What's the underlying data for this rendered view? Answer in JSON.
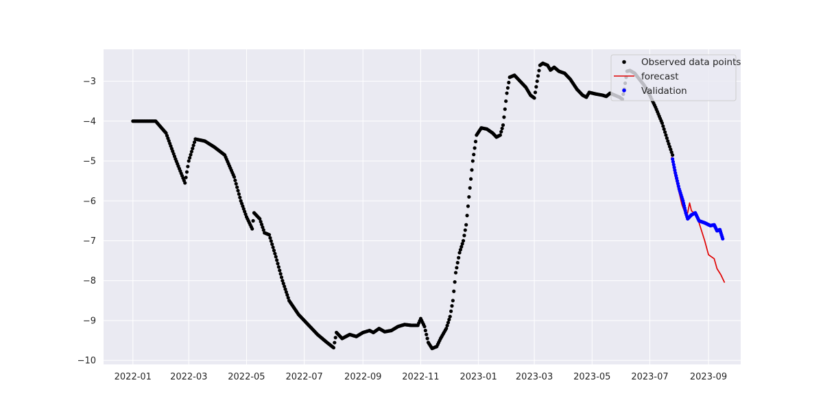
{
  "chart_data": {
    "type": "scatter",
    "title": "",
    "xlabel": "",
    "ylabel": "",
    "x_axis_type": "date",
    "xlim": [
      "2021-12-01",
      "2023-10-05"
    ],
    "ylim": [
      -10.1,
      -2.2
    ],
    "x_ticks": [
      "2022-01",
      "2022-03",
      "2022-05",
      "2022-07",
      "2022-09",
      "2022-11",
      "2023-01",
      "2023-03",
      "2023-05",
      "2023-07",
      "2023-09"
    ],
    "y_ticks": [
      -3,
      -4,
      -5,
      -6,
      -7,
      -8,
      -9,
      -10
    ],
    "grid": true,
    "background": "#eaeaf2",
    "legend_position": "top-right",
    "series": [
      {
        "name": "Observed data points",
        "style": "points",
        "color": "#000000",
        "points": [
          [
            "2022-01-01",
            -4.0
          ],
          [
            "2022-01-25",
            -4.0
          ],
          [
            "2022-02-05",
            -4.3
          ],
          [
            "2022-02-15",
            -4.95
          ],
          [
            "2022-02-25",
            -5.55
          ],
          [
            "2022-03-01",
            -5.0
          ],
          [
            "2022-03-08",
            -4.45
          ],
          [
            "2022-03-18",
            -4.5
          ],
          [
            "2022-03-28",
            -4.65
          ],
          [
            "2022-04-08",
            -4.85
          ],
          [
            "2022-04-18",
            -5.4
          ],
          [
            "2022-04-25",
            -6.0
          ],
          [
            "2022-05-01",
            -6.4
          ],
          [
            "2022-05-07",
            -6.7
          ],
          [
            "2022-05-09",
            -6.3
          ],
          [
            "2022-05-15",
            -6.45
          ],
          [
            "2022-05-20",
            -6.8
          ],
          [
            "2022-05-25",
            -6.85
          ],
          [
            "2022-06-01",
            -7.4
          ],
          [
            "2022-06-08",
            -8.0
          ],
          [
            "2022-06-15",
            -8.5
          ],
          [
            "2022-06-25",
            -8.85
          ],
          [
            "2022-07-05",
            -9.1
          ],
          [
            "2022-07-15",
            -9.35
          ],
          [
            "2022-07-25",
            -9.55
          ],
          [
            "2022-08-01",
            -9.68
          ],
          [
            "2022-08-04",
            -9.3
          ],
          [
            "2022-08-10",
            -9.45
          ],
          [
            "2022-08-18",
            -9.35
          ],
          [
            "2022-08-25",
            -9.4
          ],
          [
            "2022-09-01",
            -9.3
          ],
          [
            "2022-09-08",
            -9.25
          ],
          [
            "2022-09-12",
            -9.3
          ],
          [
            "2022-09-18",
            -9.2
          ],
          [
            "2022-09-24",
            -9.28
          ],
          [
            "2022-10-01",
            -9.25
          ],
          [
            "2022-10-08",
            -9.15
          ],
          [
            "2022-10-15",
            -9.1
          ],
          [
            "2022-10-22",
            -9.12
          ],
          [
            "2022-10-29",
            -9.12
          ],
          [
            "2022-11-01",
            -8.95
          ],
          [
            "2022-11-05",
            -9.15
          ],
          [
            "2022-11-09",
            -9.55
          ],
          [
            "2022-11-13",
            -9.7
          ],
          [
            "2022-11-18",
            -9.65
          ],
          [
            "2022-11-22",
            -9.45
          ],
          [
            "2022-11-28",
            -9.2
          ],
          [
            "2022-12-02",
            -8.9
          ],
          [
            "2022-12-05",
            -8.5
          ],
          [
            "2022-12-08",
            -7.8
          ],
          [
            "2022-12-12",
            -7.3
          ],
          [
            "2022-12-16",
            -7.0
          ],
          [
            "2022-12-19",
            -6.6
          ],
          [
            "2022-12-22",
            -5.9
          ],
          [
            "2022-12-26",
            -5.0
          ],
          [
            "2022-12-30",
            -4.35
          ],
          [
            "2023-01-04",
            -4.17
          ],
          [
            "2023-01-10",
            -4.2
          ],
          [
            "2023-01-16",
            -4.3
          ],
          [
            "2023-01-20",
            -4.4
          ],
          [
            "2023-01-24",
            -4.35
          ],
          [
            "2023-01-27",
            -4.1
          ],
          [
            "2023-01-31",
            -3.3
          ],
          [
            "2023-02-03",
            -2.9
          ],
          [
            "2023-02-08",
            -2.85
          ],
          [
            "2023-02-14",
            -3.0
          ],
          [
            "2023-02-20",
            -3.15
          ],
          [
            "2023-02-25",
            -3.35
          ],
          [
            "2023-03-01",
            -3.42
          ],
          [
            "2023-03-04",
            -3.0
          ],
          [
            "2023-03-07",
            -2.6
          ],
          [
            "2023-03-10",
            -2.55
          ],
          [
            "2023-03-15",
            -2.6
          ],
          [
            "2023-03-18",
            -2.72
          ],
          [
            "2023-03-22",
            -2.65
          ],
          [
            "2023-03-27",
            -2.75
          ],
          [
            "2023-04-02",
            -2.8
          ],
          [
            "2023-04-08",
            -2.95
          ],
          [
            "2023-04-15",
            -3.2
          ],
          [
            "2023-04-21",
            -3.35
          ],
          [
            "2023-04-25",
            -3.4
          ],
          [
            "2023-04-28",
            -3.28
          ],
          [
            "2023-05-05",
            -3.32
          ],
          [
            "2023-05-12",
            -3.35
          ],
          [
            "2023-05-16",
            -3.38
          ],
          [
            "2023-05-20",
            -3.3
          ],
          [
            "2023-05-25",
            -3.35
          ],
          [
            "2023-05-30",
            -3.4
          ],
          [
            "2023-06-02",
            -3.45
          ],
          [
            "2023-06-04",
            -3.2
          ],
          [
            "2023-06-07",
            -2.75
          ],
          [
            "2023-06-10",
            -2.73
          ],
          [
            "2023-06-15",
            -2.8
          ],
          [
            "2023-06-20",
            -2.95
          ],
          [
            "2023-06-25",
            -3.1
          ],
          [
            "2023-07-01",
            -3.35
          ],
          [
            "2023-07-07",
            -3.65
          ],
          [
            "2023-07-14",
            -4.05
          ],
          [
            "2023-07-20",
            -4.5
          ],
          [
            "2023-07-25",
            -4.85
          ]
        ]
      },
      {
        "name": "forecast",
        "style": "line",
        "color": "#e00000",
        "points": [
          [
            "2023-07-24",
            -4.9
          ],
          [
            "2023-07-27",
            -5.3
          ],
          [
            "2023-07-31",
            -5.7
          ],
          [
            "2023-08-04",
            -6.1
          ],
          [
            "2023-08-08",
            -6.35
          ],
          [
            "2023-08-10",
            -6.3
          ],
          [
            "2023-08-12",
            -6.05
          ],
          [
            "2023-08-14",
            -6.25
          ],
          [
            "2023-08-17",
            -6.3
          ],
          [
            "2023-08-20",
            -6.4
          ],
          [
            "2023-08-24",
            -6.7
          ],
          [
            "2023-08-28",
            -7.0
          ],
          [
            "2023-09-01",
            -7.35
          ],
          [
            "2023-09-04",
            -7.4
          ],
          [
            "2023-09-07",
            -7.45
          ],
          [
            "2023-09-10",
            -7.7
          ],
          [
            "2023-09-14",
            -7.85
          ],
          [
            "2023-09-18",
            -8.05
          ]
        ]
      },
      {
        "name": "Validation",
        "style": "points",
        "color": "#0000ff",
        "points": [
          [
            "2023-07-25",
            -4.95
          ],
          [
            "2023-07-28",
            -5.3
          ],
          [
            "2023-08-01",
            -5.7
          ],
          [
            "2023-08-05",
            -6.0
          ],
          [
            "2023-08-08",
            -6.3
          ],
          [
            "2023-08-10",
            -6.45
          ],
          [
            "2023-08-14",
            -6.35
          ],
          [
            "2023-08-18",
            -6.3
          ],
          [
            "2023-08-22",
            -6.5
          ],
          [
            "2023-08-28",
            -6.55
          ],
          [
            "2023-09-03",
            -6.62
          ],
          [
            "2023-09-07",
            -6.6
          ],
          [
            "2023-09-10",
            -6.75
          ],
          [
            "2023-09-13",
            -6.72
          ],
          [
            "2023-09-16",
            -6.95
          ]
        ]
      }
    ]
  }
}
